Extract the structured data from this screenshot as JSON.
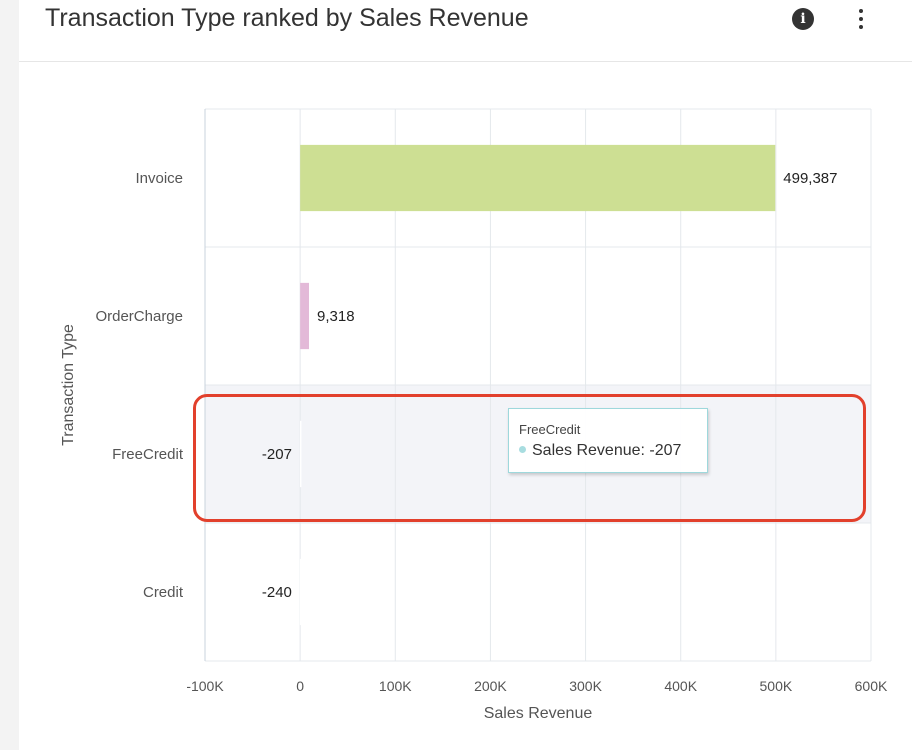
{
  "widget": {
    "title": "Transaction Type ranked by Sales Revenue",
    "info_icon": "info-circle-icon",
    "menu_icon": "more-vertical-icon"
  },
  "chart_data": {
    "type": "bar",
    "orientation": "horizontal",
    "xlabel": "Sales Revenue",
    "ylabel": "Transaction Type",
    "xlim": [
      -100000,
      600000
    ],
    "x_ticks": [
      "-100K",
      "0",
      "100K",
      "200K",
      "300K",
      "400K",
      "500K",
      "600K"
    ],
    "x_tick_values": [
      -100000,
      0,
      100000,
      200000,
      300000,
      400000,
      500000,
      600000
    ],
    "grid": true,
    "legend": "none",
    "categories": [
      "Invoice",
      "OrderCharge",
      "FreeCredit",
      "Credit"
    ],
    "values": [
      499387,
      9318,
      -207,
      -240
    ],
    "value_labels": [
      "499,387",
      "9,318",
      "-207",
      "-240"
    ],
    "colors": [
      "#cddf93",
      "#e3b9d8",
      "#ffffff",
      "#ffffff"
    ],
    "hovered_index": 2
  },
  "tooltip": {
    "category": "FreeCredit",
    "series_label": "Sales Revenue: -207",
    "dot_color": "#a8dde0"
  }
}
